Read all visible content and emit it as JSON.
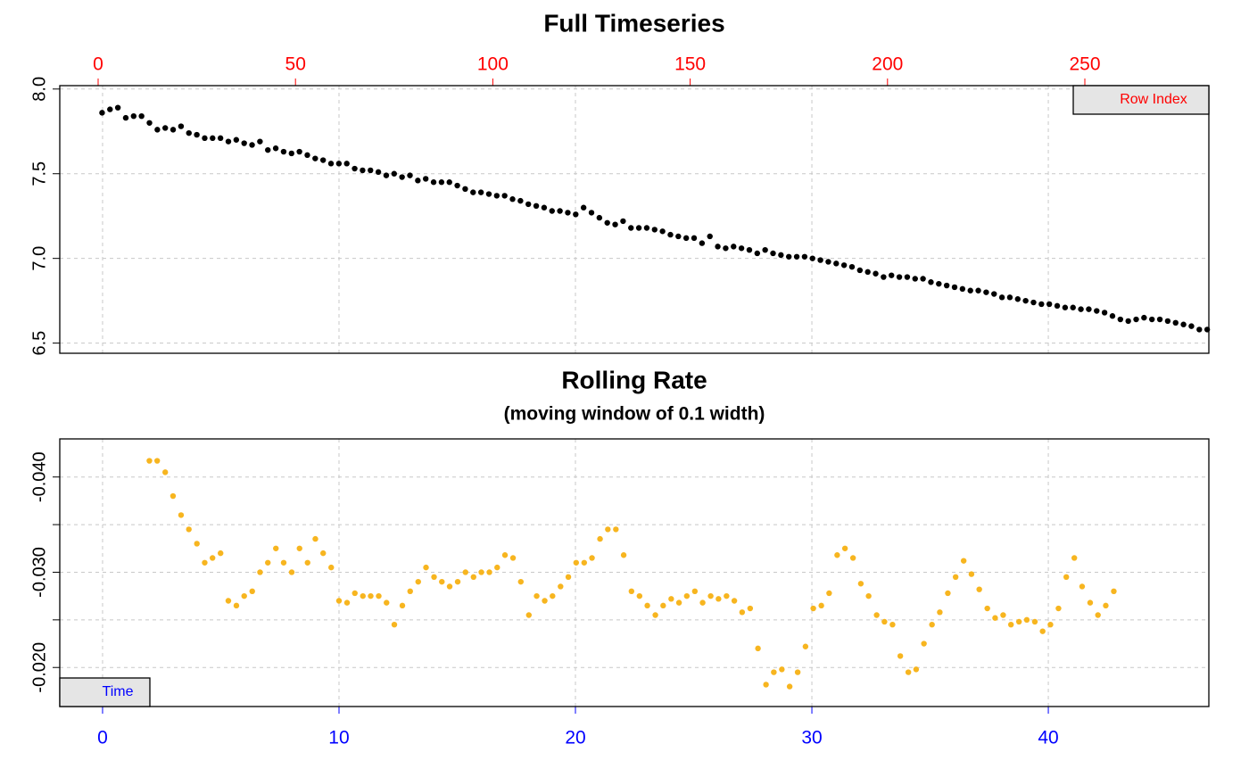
{
  "chart_data": [
    {
      "type": "scatter",
      "title": "Full Timeseries",
      "x_label": "Row Index",
      "color": "#000000",
      "axis_color": "#ff0000",
      "x": [
        1,
        3,
        5,
        7,
        9,
        11,
        13,
        15,
        17,
        19,
        21,
        23,
        25,
        27,
        29,
        31,
        33,
        35,
        37,
        39,
        41,
        43,
        45,
        47,
        49,
        51,
        53,
        55,
        57,
        59,
        61,
        63,
        65,
        67,
        69,
        71,
        73,
        75,
        77,
        79,
        81,
        83,
        85,
        87,
        89,
        91,
        93,
        95,
        97,
        99,
        101,
        103,
        105,
        107,
        109,
        111,
        113,
        115,
        117,
        119,
        121,
        123,
        125,
        127,
        129,
        131,
        133,
        135,
        137,
        139,
        141,
        143,
        145,
        147,
        149,
        151,
        153,
        155,
        157,
        159,
        161,
        163,
        165,
        167,
        169,
        171,
        173,
        175,
        177,
        179,
        181,
        183,
        185,
        187,
        189,
        191,
        193,
        195,
        197,
        199,
        201,
        203,
        205,
        207,
        209,
        211,
        213,
        215,
        217,
        219,
        221,
        223,
        225,
        227,
        229,
        231,
        233,
        235,
        237,
        239,
        241,
        243,
        245,
        247,
        249,
        251,
        253,
        255,
        257,
        259,
        261,
        263,
        265,
        267,
        269,
        271,
        273,
        275,
        277,
        279,
        281
      ],
      "values": [
        7.86,
        7.88,
        7.89,
        7.83,
        7.84,
        7.84,
        7.8,
        7.76,
        7.77,
        7.76,
        7.78,
        7.74,
        7.73,
        7.71,
        7.71,
        7.71,
        7.69,
        7.7,
        7.68,
        7.67,
        7.69,
        7.64,
        7.65,
        7.63,
        7.62,
        7.63,
        7.61,
        7.59,
        7.58,
        7.56,
        7.56,
        7.56,
        7.53,
        7.52,
        7.52,
        7.51,
        7.49,
        7.5,
        7.48,
        7.49,
        7.46,
        7.47,
        7.45,
        7.45,
        7.45,
        7.43,
        7.41,
        7.39,
        7.39,
        7.38,
        7.37,
        7.37,
        7.35,
        7.34,
        7.32,
        7.31,
        7.3,
        7.28,
        7.28,
        7.27,
        7.26,
        7.3,
        7.27,
        7.24,
        7.21,
        7.2,
        7.22,
        7.18,
        7.18,
        7.18,
        7.17,
        7.16,
        7.14,
        7.13,
        7.12,
        7.12,
        7.09,
        7.13,
        7.07,
        7.06,
        7.07,
        7.06,
        7.05,
        7.03,
        7.05,
        7.03,
        7.02,
        7.01,
        7.01,
        7.01,
        7.0,
        6.99,
        6.98,
        6.97,
        6.96,
        6.95,
        6.93,
        6.92,
        6.91,
        6.89,
        6.9,
        6.89,
        6.89,
        6.88,
        6.88,
        6.86,
        6.85,
        6.84,
        6.83,
        6.82,
        6.81,
        6.81,
        6.8,
        6.79,
        6.77,
        6.77,
        6.76,
        6.75,
        6.74,
        6.73,
        6.73,
        6.72,
        6.71,
        6.71,
        6.7,
        6.7,
        6.69,
        6.68,
        6.66,
        6.64,
        6.63,
        6.64,
        6.65,
        6.64,
        6.64,
        6.63,
        6.62,
        6.61,
        6.6,
        6.58,
        6.58
      ],
      "xlim": [
        -9.72,
        281.42
      ],
      "xticks": [
        0,
        50,
        100,
        150,
        200,
        250
      ],
      "xaxis_side": "top",
      "x2lim": [
        -1.81,
        46.79
      ],
      "x2ticks": [
        0,
        10,
        20,
        30,
        40
      ],
      "ylim": [
        6.44,
        8.02
      ],
      "yticks": [
        {
          "value": 6.5,
          "label": "6.5"
        },
        {
          "value": 7,
          "label": "7.0"
        },
        7.5,
        {
          "value": 8,
          "label": "8.0"
        }
      ],
      "grid": true,
      "legend": "top-right"
    },
    {
      "type": "scatter",
      "title": "Rolling Rate",
      "subtitle": "(moving window of 0.1 width)",
      "x_label": "Time",
      "color": "#f7b51f",
      "axis_color": "#0000ff",
      "x": [
        1.98,
        2.31,
        2.65,
        2.98,
        3.32,
        3.65,
        3.99,
        4.32,
        4.65,
        4.99,
        5.32,
        5.66,
        5.99,
        6.33,
        6.66,
        6.99,
        7.33,
        7.66,
        8.0,
        8.33,
        8.67,
        9.0,
        9.33,
        9.67,
        10.0,
        10.34,
        10.67,
        11.01,
        11.34,
        11.68,
        12.01,
        12.34,
        12.68,
        13.01,
        13.35,
        13.68,
        14.02,
        14.35,
        14.68,
        15.02,
        15.35,
        15.69,
        16.02,
        16.36,
        16.69,
        17.02,
        17.36,
        17.69,
        18.03,
        18.36,
        18.7,
        19.03,
        19.37,
        19.7,
        20.03,
        20.37,
        20.7,
        21.04,
        21.37,
        21.71,
        22.04,
        22.37,
        22.71,
        23.04,
        23.38,
        23.71,
        24.05,
        24.38,
        24.71,
        25.05,
        25.38,
        25.72,
        26.05,
        26.39,
        26.72,
        27.05,
        27.39,
        27.72,
        28.06,
        28.39,
        28.73,
        29.06,
        29.4,
        29.73,
        30.06,
        30.4,
        30.73,
        31.07,
        31.4,
        31.74,
        32.07,
        32.4,
        32.74,
        33.07,
        33.41,
        33.74,
        34.08,
        34.41,
        34.74,
        35.08,
        35.41,
        35.75,
        36.08,
        36.42,
        36.75,
        37.08,
        37.42,
        37.75,
        38.09,
        38.42,
        38.76,
        39.09,
        39.43,
        39.76,
        40.09,
        40.43,
        40.76,
        41.1,
        41.43,
        41.77,
        42.1,
        42.43,
        42.77
      ],
      "values": [
        -0.0417,
        -0.0417,
        -0.0405,
        -0.038,
        -0.036,
        -0.0345,
        -0.033,
        -0.031,
        -0.0315,
        -0.032,
        -0.027,
        -0.0265,
        -0.0275,
        -0.028,
        -0.03,
        -0.031,
        -0.0325,
        -0.031,
        -0.03,
        -0.0325,
        -0.031,
        -0.0335,
        -0.032,
        -0.0305,
        -0.027,
        -0.0268,
        -0.0278,
        -0.0275,
        -0.0275,
        -0.0275,
        -0.0268,
        -0.0245,
        -0.0265,
        -0.028,
        -0.029,
        -0.0305,
        -0.0295,
        -0.029,
        -0.0285,
        -0.029,
        -0.03,
        -0.0295,
        -0.03,
        -0.03,
        -0.0305,
        -0.0318,
        -0.0315,
        -0.029,
        -0.0255,
        -0.0275,
        -0.027,
        -0.0275,
        -0.0285,
        -0.0295,
        -0.031,
        -0.031,
        -0.0315,
        -0.0335,
        -0.0345,
        -0.0345,
        -0.0318,
        -0.028,
        -0.0275,
        -0.0265,
        -0.0255,
        -0.0265,
        -0.0272,
        -0.0268,
        -0.0275,
        -0.028,
        -0.0268,
        -0.0275,
        -0.0272,
        -0.0275,
        -0.027,
        -0.0258,
        -0.0262,
        -0.022,
        -0.0182,
        -0.0195,
        -0.0198,
        -0.018,
        -0.0195,
        -0.0222,
        -0.0262,
        -0.0265,
        -0.0278,
        -0.0318,
        -0.0325,
        -0.0315,
        -0.0288,
        -0.0275,
        -0.0255,
        -0.0248,
        -0.0245,
        -0.0212,
        -0.0195,
        -0.0198,
        -0.0225,
        -0.0245,
        -0.0258,
        -0.0278,
        -0.0295,
        -0.0312,
        -0.0298,
        -0.0282,
        -0.0262,
        -0.0252,
        -0.0255,
        -0.0245,
        -0.0248,
        -0.025,
        -0.0248,
        -0.0238,
        -0.0245,
        -0.0262,
        -0.0295,
        -0.0315,
        -0.0285,
        -0.0268,
        -0.0255,
        -0.0265,
        -0.028
      ],
      "xlim": [
        -1.81,
        46.79
      ],
      "xticks": [
        0,
        10,
        20,
        30,
        40
      ],
      "xaxis_side": "bottom",
      "ylim": [
        -0.0159,
        -0.044
      ],
      "yticks": [
        {
          "value": -0.04,
          "label": "-0.040"
        },
        {
          "value": -0.03,
          "label": "-0.030"
        },
        {
          "value": -0.02,
          "label": "-0.020"
        }
      ],
      "yminor_ticks": [
        -0.035,
        -0.025
      ],
      "grid": true,
      "legend": "bottom-left"
    }
  ]
}
